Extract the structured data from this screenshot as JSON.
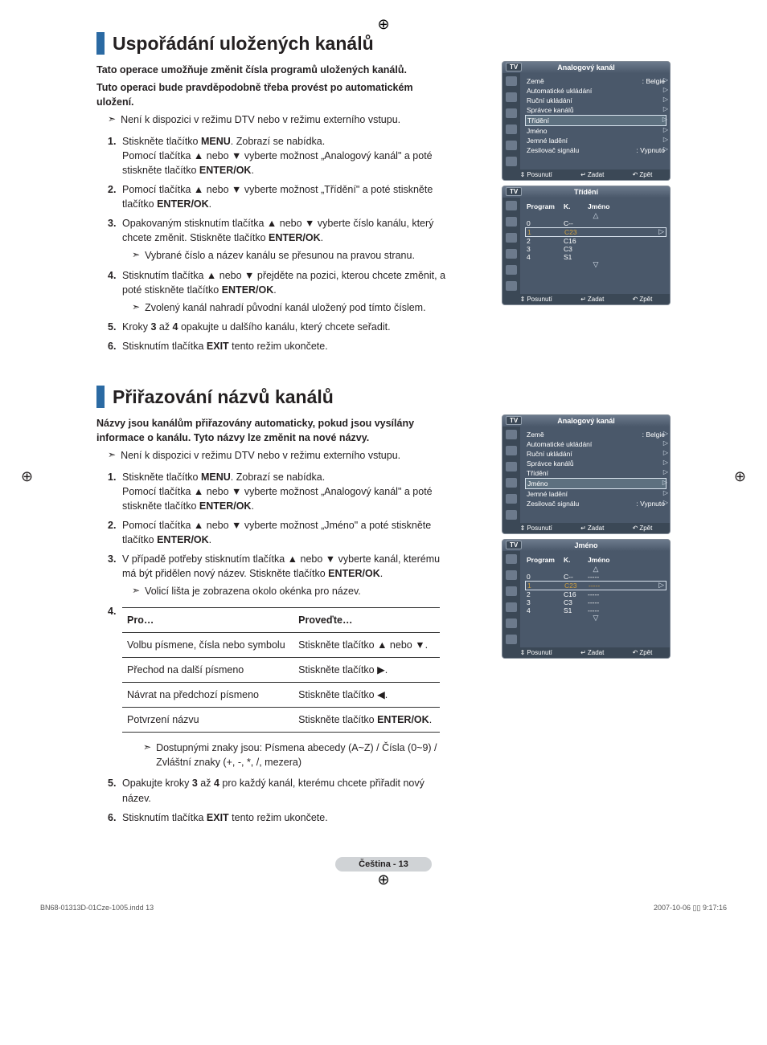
{
  "print_marks": {
    "top": "⊕",
    "left": "⊕",
    "right": "⊕",
    "bottom": "⊕"
  },
  "page_badge": "Čeština - 13",
  "footer": {
    "left": "BN68-01313D-01Cze-1005.indd   13",
    "right": "2007-10-06   ▯▯ 9:17:16"
  },
  "section1": {
    "title": "Uspořádání uložených kanálů",
    "intro1": "Tato operace umožňuje změnit čísla programů uložených kanálů.",
    "intro2": "Tuto operaci bude pravděpodobně třeba provést po automatickém uložení.",
    "note": "Není k dispozici v režimu DTV nebo v režimu externího vstupu.",
    "steps": [
      {
        "n": "1.",
        "body_before": "Stiskněte tlačítko ",
        "bold1": "MENU",
        "body_mid": ". Zobrazí se nabídka.\nPomocí tlačítka ▲ nebo ▼ vyberte možnost „Analogový kanál\" a poté stiskněte tlačítko ",
        "bold2": "ENTER/OK",
        "body_after": "."
      },
      {
        "n": "2.",
        "body_before": "Pomocí tlačítka ▲ nebo ▼ vyberte možnost „Třídění\" a poté stiskněte tlačítko ",
        "bold1": "ENTER/OK",
        "body_after": "."
      },
      {
        "n": "3.",
        "body_before": "Opakovaným stisknutím tlačítka ▲ nebo ▼ vyberte číslo kanálu, který chcete změnit. Stiskněte tlačítko ",
        "bold1": "ENTER/OK",
        "body_after": ".",
        "sub": "Vybrané číslo a název kanálu se přesunou na pravou stranu."
      },
      {
        "n": "4.",
        "body_before": "Stisknutím tlačítka ▲ nebo ▼ přejděte na pozici, kterou chcete změnit, a poté stiskněte tlačítko ",
        "bold1": "ENTER/OK",
        "body_after": ".",
        "sub": "Zvolený kanál nahradí původní kanál uložený pod tímto číslem."
      },
      {
        "n": "5.",
        "body_before": "Kroky ",
        "bold1": "3",
        "body_mid": " až ",
        "bold2": "4",
        "body_after": " opakujte u dalšího kanálu, který chcete seřadit."
      },
      {
        "n": "6.",
        "body_before": "Stisknutím tlačítka ",
        "bold1": "EXIT",
        "body_after": " tento režim ukončete."
      }
    ]
  },
  "section2": {
    "title": "Přiřazování názvů kanálů",
    "intro1": "Názvy jsou kanálům přiřazovány automaticky, pokud jsou vysílány informace o kanálu.  Tyto názvy lze změnit na nové názvy.",
    "note": "Není k dispozici v režimu DTV nebo v režimu externího vstupu.",
    "steps": [
      {
        "n": "1.",
        "body_before": "Stiskněte tlačítko ",
        "bold1": "MENU",
        "body_mid": ". Zobrazí se nabídka.\nPomocí tlačítka ▲ nebo ▼ vyberte možnost „Analogový kanál\" a poté stiskněte tlačítko ",
        "bold2": "ENTER/OK",
        "body_after": "."
      },
      {
        "n": "2.",
        "body_before": "Pomocí tlačítka ▲ nebo ▼ vyberte možnost „Jméno\" a poté stiskněte tlačítko ",
        "bold1": "ENTER/OK",
        "body_after": "."
      },
      {
        "n": "3.",
        "body_before": "V případě potřeby stisknutím tlačítka ▲ nebo ▼ vyberte kanál, kterému má být přidělen nový název. Stiskněte tlačítko ",
        "bold1": "ENTER/OK",
        "body_after": ".",
        "sub": "Volicí lišta je zobrazena okolo okénka pro název."
      },
      {
        "n": "4."
      },
      {
        "n": "5.",
        "body_before": "Opakujte kroky ",
        "bold1": "3",
        "body_mid": " až ",
        "bold2": "4",
        "body_after": " pro každý kanál, kterému chcete přiřadit nový název."
      },
      {
        "n": "6.",
        "body_before": "Stisknutím tlačítka ",
        "bold1": "EXIT",
        "body_after": " tento režim ukončete."
      }
    ],
    "table": {
      "head": [
        "Pro…",
        "Proveďte…"
      ],
      "rows": [
        [
          "Volbu písmene, čísla nebo symbolu",
          "Stiskněte tlačítko ▲ nebo ▼."
        ],
        [
          "Přechod na další písmeno",
          "Stiskněte tlačítko ▶."
        ],
        [
          "Návrat na předchozí písmeno",
          "Stiskněte tlačítko ◀."
        ],
        [
          "Potvrzení názvu",
          "Stiskněte tlačítko <b>ENTER/OK</b>."
        ]
      ]
    },
    "post_note": "Dostupnými znaky jsou: Písmena abecedy (A~Z) / Čísla (0~9) / Zvláštní znaky (+, -, *, /, mezera)"
  },
  "osd_common": {
    "tv_tab": "TV",
    "footer": {
      "move": "Posunutí",
      "enter": "Zadat",
      "back": "Zpět"
    }
  },
  "osd1": {
    "title": "Analogový kanál",
    "highlight": "Třídění",
    "rows": [
      {
        "l": "Země",
        "r": ": Belgie"
      },
      {
        "l": "Automatické ukládání",
        "r": ""
      },
      {
        "l": "Ruční ukládání",
        "r": ""
      },
      {
        "l": "Správce kanálů",
        "r": ""
      },
      {
        "l": "Třídění",
        "r": ""
      },
      {
        "l": "Jméno",
        "r": ""
      },
      {
        "l": "Jemné ladění",
        "r": ""
      },
      {
        "l": "Zesilovač signálu",
        "r": ": Vypnuto"
      }
    ]
  },
  "osd2": {
    "title": "Třídění",
    "head": [
      "Program",
      "K.",
      "Jméno"
    ],
    "rows": [
      {
        "p": "0",
        "k": "C--",
        "j": ""
      },
      {
        "p": "1",
        "k": "C23",
        "j": "",
        "sel": true
      },
      {
        "p": "2",
        "k": "C16",
        "j": ""
      },
      {
        "p": "3",
        "k": "C3",
        "j": ""
      },
      {
        "p": "4",
        "k": "S1",
        "j": ""
      }
    ]
  },
  "osd3": {
    "title": "Analogový kanál",
    "highlight": "Jméno",
    "rows": [
      {
        "l": "Země",
        "r": ": Belgie"
      },
      {
        "l": "Automatické ukládání",
        "r": ""
      },
      {
        "l": "Ruční ukládání",
        "r": ""
      },
      {
        "l": "Správce kanálů",
        "r": ""
      },
      {
        "l": "Třídění",
        "r": ""
      },
      {
        "l": "Jméno",
        "r": ""
      },
      {
        "l": "Jemné ladění",
        "r": ""
      },
      {
        "l": "Zesilovač signálu",
        "r": ": Vypnuto"
      }
    ]
  },
  "osd4": {
    "title": "Jméno",
    "head": [
      "Program",
      "K.",
      "Jméno"
    ],
    "rows": [
      {
        "p": "0",
        "k": "C--",
        "j": "-----"
      },
      {
        "p": "1",
        "k": "C23",
        "j": "-----",
        "sel": true
      },
      {
        "p": "2",
        "k": "C16",
        "j": "-----"
      },
      {
        "p": "3",
        "k": "C3",
        "j": "-----"
      },
      {
        "p": "4",
        "k": "S1",
        "j": "-----"
      }
    ]
  },
  "colors": {
    "blue_bar": "#2b6aa3",
    "osd_bg": "#4a586a",
    "osd_dark": "#3b4856",
    "osd_border": "#808a96",
    "highlight_gold": "#cfa040",
    "text": "#231f20",
    "badge_bg": "#d0d3d6"
  }
}
